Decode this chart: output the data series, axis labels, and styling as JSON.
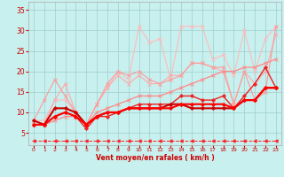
{
  "xlabel": "Vent moyen/en rafales ( km/h )",
  "xlim": [
    -0.5,
    23.5
  ],
  "ylim": [
    2,
    37
  ],
  "yticks": [
    5,
    10,
    15,
    20,
    25,
    30,
    35
  ],
  "xticks": [
    0,
    1,
    2,
    3,
    4,
    5,
    6,
    7,
    8,
    9,
    10,
    11,
    12,
    13,
    14,
    15,
    16,
    17,
    18,
    19,
    20,
    21,
    22,
    23
  ],
  "background_color": "#c8f0ee",
  "grid_color": "#9ecece",
  "lines": [
    {
      "x": [
        0,
        1,
        2,
        3,
        4,
        5,
        6,
        7,
        8,
        9,
        10,
        11,
        12,
        13,
        14,
        15,
        16,
        17,
        18,
        19,
        20,
        21,
        22,
        23
      ],
      "y": [
        8,
        8,
        13,
        13,
        10,
        7,
        12,
        16,
        20,
        18,
        31,
        27,
        28,
        18,
        31,
        31,
        31,
        23,
        24,
        19,
        30,
        20,
        28,
        31
      ],
      "color": "#ffbbbb",
      "lw": 0.8,
      "marker": "x",
      "ms": 2.5,
      "zorder": 2
    },
    {
      "x": [
        0,
        1,
        2,
        3,
        4,
        5,
        6,
        7,
        8,
        9,
        10,
        11,
        12,
        13,
        14,
        15,
        16,
        17,
        18,
        19,
        20,
        21,
        22,
        23
      ],
      "y": [
        8,
        13,
        18,
        14,
        10,
        7,
        12,
        17,
        20,
        19,
        20,
        18,
        17,
        18,
        19,
        22,
        22,
        21,
        21,
        12,
        20,
        13,
        15,
        31
      ],
      "color": "#ff9999",
      "lw": 0.8,
      "marker": "x",
      "ms": 2.5,
      "zorder": 3
    },
    {
      "x": [
        0,
        1,
        2,
        3,
        4,
        5,
        6,
        7,
        8,
        9,
        10,
        11,
        12,
        13,
        14,
        15,
        16,
        17,
        18,
        19,
        20,
        21,
        22,
        23
      ],
      "y": [
        7,
        7,
        8,
        9,
        9,
        7,
        10,
        11,
        12,
        13,
        14,
        14,
        14,
        15,
        16,
        17,
        18,
        19,
        20,
        20,
        21,
        21,
        22,
        23
      ],
      "color": "#ff8888",
      "lw": 0.9,
      "marker": "x",
      "ms": 2.5,
      "zorder": 3
    },
    {
      "x": [
        0,
        1,
        2,
        3,
        4,
        5,
        6,
        7,
        8,
        9,
        10,
        11,
        12,
        13,
        14,
        15,
        16,
        17,
        18,
        19,
        20,
        21,
        22,
        23
      ],
      "y": [
        8,
        7,
        13,
        17,
        10,
        7,
        12,
        16,
        19,
        17,
        19,
        17,
        17,
        19,
        19,
        22,
        22,
        21,
        20,
        12,
        20,
        17,
        20,
        29
      ],
      "color": "#ffaaaa",
      "lw": 0.8,
      "marker": "x",
      "ms": 2.5,
      "zorder": 2
    },
    {
      "x": [
        0,
        1,
        2,
        3,
        4,
        5,
        6,
        7,
        8,
        9,
        10,
        11,
        12,
        13,
        14,
        15,
        16,
        17,
        18,
        19,
        20,
        21,
        22,
        23
      ],
      "y": [
        7,
        7,
        9,
        10,
        9,
        6,
        9,
        9,
        10,
        11,
        12,
        12,
        12,
        12,
        14,
        14,
        13,
        13,
        14,
        11,
        14,
        17,
        21,
        16
      ],
      "color": "#ee2222",
      "lw": 1.0,
      "marker": "D",
      "ms": 2.0,
      "zorder": 4
    },
    {
      "x": [
        0,
        1,
        2,
        3,
        4,
        5,
        6,
        7,
        8,
        9,
        10,
        11,
        12,
        13,
        14,
        15,
        16,
        17,
        18,
        19,
        20,
        21,
        22,
        23
      ],
      "y": [
        8,
        7,
        11,
        11,
        10,
        7,
        9,
        10,
        10,
        11,
        11,
        11,
        11,
        12,
        12,
        11,
        11,
        11,
        11,
        11,
        13,
        13,
        16,
        16
      ],
      "color": "#cc0000",
      "lw": 1.5,
      "marker": "D",
      "ms": 2.0,
      "zorder": 5
    },
    {
      "x": [
        0,
        1,
        2,
        3,
        4,
        5,
        6,
        7,
        8,
        9,
        10,
        11,
        12,
        13,
        14,
        15,
        16,
        17,
        18,
        19,
        20,
        21,
        22,
        23
      ],
      "y": [
        7,
        7,
        9,
        10,
        9,
        7,
        9,
        10,
        10,
        11,
        11,
        11,
        11,
        11,
        12,
        12,
        12,
        12,
        12,
        11,
        13,
        13,
        16,
        16
      ],
      "color": "#ff0000",
      "lw": 1.5,
      "marker": "D",
      "ms": 2.0,
      "zorder": 5
    },
    {
      "x": [
        0,
        1,
        2,
        3,
        4,
        5,
        6,
        7,
        8,
        9,
        10,
        11,
        12,
        13,
        14,
        15,
        16,
        17,
        18,
        19,
        20,
        21,
        22,
        23
      ],
      "y": [
        3,
        3,
        3,
        3,
        3,
        3,
        3,
        3,
        3,
        3,
        3,
        3,
        3,
        3,
        3,
        3,
        3,
        3,
        3,
        3,
        3,
        3,
        3,
        3
      ],
      "color": "#ff2222",
      "lw": 0.7,
      "marker": "<",
      "ms": 2.5,
      "zorder": 2,
      "linestyle": "--"
    }
  ]
}
